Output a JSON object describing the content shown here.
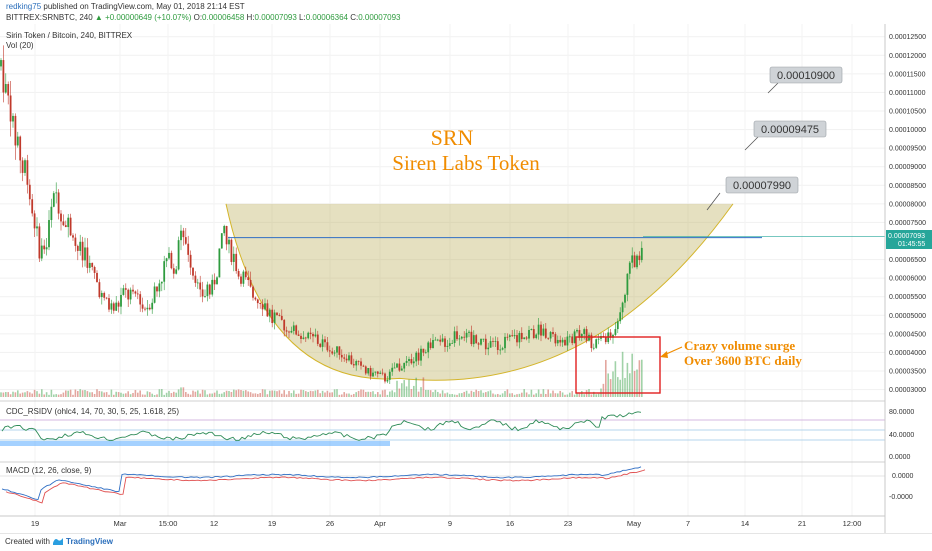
{
  "header": {
    "user": "redking75",
    "published": "published on TradingView.com, May 01, 2018 21:14 EST",
    "line2": "BITTREX:SRNBTC, 240",
    "change": "▲ +0.00000649 (+10.07%)",
    "ohlc_o_label": "O:",
    "ohlc_o": "0.00006458",
    "ohlc_h_label": "H:",
    "ohlc_h": "0.00007093",
    "ohlc_l_label": "L:",
    "ohlc_l": "0.00006364",
    "ohlc_c_label": "C:",
    "ohlc_c": "0.00007093"
  },
  "footer": {
    "created": "Created with",
    "brand": "TradingView"
  },
  "colors": {
    "up": "#2e9b3e",
    "down": "#c0392b",
    "cup_fill": "#b5a64a",
    "cup_line": "#d4b52b",
    "annotation": "#f08c00",
    "box": "#e02020",
    "rsi": "#2e8b57",
    "macd": "#2f6ec4",
    "signal": "#e05050"
  },
  "chart_data": [
    {
      "type": "candlestick",
      "title": "SRN",
      "subtitle": "Siren Labs Token",
      "symbol_label": "Sirin Token / Bitcoin, 240, BITTREX",
      "volume_label": "Vol (20)",
      "x_ticks": [
        "19",
        "Mar",
        "15:00",
        "12",
        "19",
        "26",
        "Apr",
        "9",
        "16",
        "23",
        "May",
        "7",
        "14",
        "21",
        "12:00"
      ],
      "y_ticks": [
        "0.00012500",
        "0.00012000",
        "0.00011500",
        "0.00011000",
        "0.00010500",
        "0.00010000",
        "0.00009500",
        "0.00009000",
        "0.00008500",
        "0.00008000",
        "0.00007500",
        "0.00006500",
        "0.00006000",
        "0.00005500",
        "0.00005000",
        "0.00004500",
        "0.00004000",
        "0.00003500",
        "0.00003000"
      ],
      "ylim": [
        2.8e-05,
        0.000126
      ],
      "last_price_label": "0.00007093",
      "countdown_label": "01:45:55",
      "targets": [
        "0.00007990",
        "0.00009475",
        "0.00010900"
      ],
      "annotation": [
        "Crazy volume surge",
        "Over 3600 BTC daily"
      ],
      "price_path": [
        [
          0,
          0.000117
        ],
        [
          14,
          0.0001
        ],
        [
          30,
          8.4e-05
        ],
        [
          40,
          6.6e-05
        ],
        [
          46,
          7e-05
        ],
        [
          55,
          8.3e-05
        ],
        [
          62,
          7.6e-05
        ],
        [
          70,
          7.4e-05
        ],
        [
          78,
          6.9e-05
        ],
        [
          85,
          6.6e-05
        ],
        [
          95,
          5.9e-05
        ],
        [
          105,
          5.3e-05
        ],
        [
          115,
          5.2e-05
        ],
        [
          125,
          5.6e-05
        ],
        [
          138,
          5.4e-05
        ],
        [
          150,
          5.3e-05
        ],
        [
          160,
          6e-05
        ],
        [
          170,
          6.6e-05
        ],
        [
          175,
          6.1e-05
        ],
        [
          180,
          7.6e-05
        ],
        [
          185,
          7.2e-05
        ],
        [
          192,
          6.3e-05
        ],
        [
          200,
          5.6e-05
        ],
        [
          210,
          5.7e-05
        ],
        [
          218,
          6.3e-05
        ],
        [
          223,
          7.3e-05
        ],
        [
          227,
          7e-05
        ],
        [
          233,
          6.5e-05
        ],
        [
          240,
          6.1e-05
        ],
        [
          250,
          5.7e-05
        ],
        [
          260,
          5.4e-05
        ],
        [
          270,
          5e-05
        ],
        [
          280,
          4.8e-05
        ],
        [
          295,
          4.6e-05
        ],
        [
          310,
          4.4e-05
        ],
        [
          325,
          4.2e-05
        ],
        [
          340,
          4e-05
        ],
        [
          350,
          3.8e-05
        ],
        [
          360,
          3.6e-05
        ],
        [
          372,
          3.4e-05
        ],
        [
          385,
          3.3e-05
        ],
        [
          398,
          3.6e-05
        ],
        [
          408,
          3.7e-05
        ],
        [
          418,
          3.9e-05
        ],
        [
          428,
          4.2e-05
        ],
        [
          440,
          4.2e-05
        ],
        [
          452,
          4.4e-05
        ],
        [
          462,
          4.5e-05
        ],
        [
          470,
          4.4e-05
        ],
        [
          485,
          4.2e-05
        ],
        [
          500,
          4.2e-05
        ],
        [
          515,
          4.4e-05
        ],
        [
          528,
          4.5e-05
        ],
        [
          540,
          4.6e-05
        ],
        [
          550,
          4.5e-05
        ],
        [
          560,
          4.2e-05
        ],
        [
          572,
          4.4e-05
        ],
        [
          582,
          4.6e-05
        ],
        [
          592,
          4.2e-05
        ],
        [
          602,
          4.3e-05
        ],
        [
          612,
          4.5e-05
        ],
        [
          620,
          5.2e-05
        ],
        [
          626,
          5.8e-05
        ],
        [
          632,
          6.5e-05
        ],
        [
          637,
          6.4e-05
        ],
        [
          643,
          7.09e-05
        ]
      ],
      "cup": {
        "upper_rim": 8e-05,
        "left_x": 226,
        "right_x": 733,
        "bottom_x": 400,
        "bottom_y": 3.3e-05,
        "level_line": 7.09e-05
      }
    },
    {
      "type": "line",
      "title": "CDC_RSIDV (ohlc4, 14, 70, 30, 5, 25, 1.618, 25)",
      "y_ticks": [
        "80.0000",
        "40.0000",
        "0.0000"
      ],
      "ylim": [
        0,
        100
      ]
    },
    {
      "type": "line",
      "title": "MACD (12, 26, close, 9)",
      "y_ticks": [
        "0.0000",
        "-0.0000"
      ]
    }
  ]
}
